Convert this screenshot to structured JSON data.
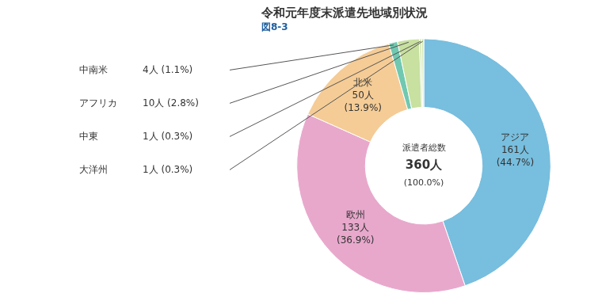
{
  "chart_data": {
    "type": "doughnut",
    "title": "令和元年度末派遣先地域別状況",
    "subtitle": "図8-3",
    "annotations": [
      "派遣者総数",
      "360人",
      "(100.0%)"
    ],
    "categories": [
      "アジア",
      "欧州",
      "北米",
      "中南米",
      "アフリカ",
      "中東",
      "大洋州"
    ],
    "values": [
      161,
      133,
      50,
      4,
      10,
      1,
      1
    ],
    "value_labels": [
      "161人 (44.7%)",
      "133人 (36.9%)",
      "50人 (13.9%)",
      "4人 (1.1%)",
      "10人 (2.8%)",
      "1人 (0.3%)",
      "1人 (0.3%)"
    ],
    "colors": [
      "#78bede",
      "#e8a8cc",
      "#f5cc96",
      "#70c8b0",
      "#c8e0a0",
      "#d4e8b0",
      "#d4e8b0"
    ],
    "data_labels": true,
    "legend": false
  }
}
